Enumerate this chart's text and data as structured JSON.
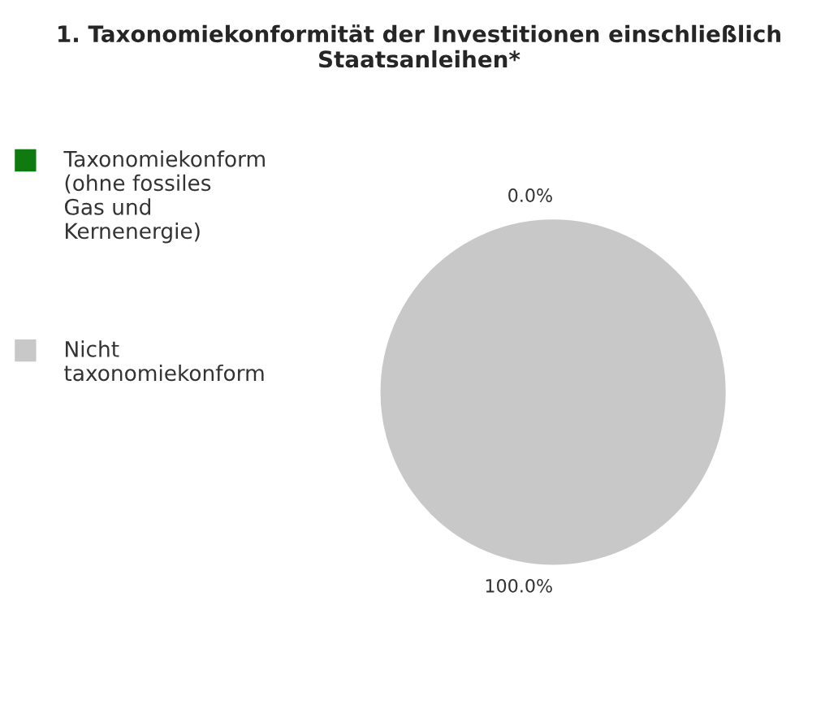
{
  "chart_data": {
    "type": "pie",
    "title": "1. Taxonomiekonformität der Investitionen einschließlich Staatsanleihen*",
    "categories": [
      "Taxonomiekonform (ohne fossiles Gas und Kernenergie)",
      "Nicht taxonomiekonform"
    ],
    "values": [
      0,
      100
    ],
    "colors": [
      "#0f7a0f",
      "#c8c8c8"
    ],
    "value_labels": [
      "0.0%",
      "100.0%"
    ],
    "legend": "left"
  }
}
